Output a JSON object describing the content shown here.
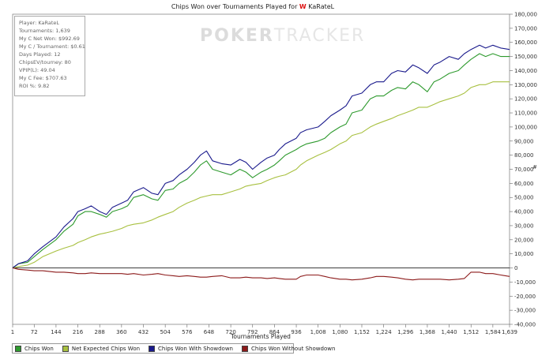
{
  "chart_data": {
    "type": "line",
    "title_prefix": "Chips Won over Tournaments Played for",
    "title_flag": "W",
    "title_player": "KaRateL",
    "xlabel": "Tournaments Played",
    "ylabel": "#",
    "xlim": [
      1,
      1639
    ],
    "ylim": [
      -40000,
      180000
    ],
    "x_ticks": [
      "1",
      "72",
      "144",
      "216",
      "288",
      "360",
      "432",
      "504",
      "576",
      "648",
      "720",
      "792",
      "864",
      "936",
      "1,008",
      "1,080",
      "1,152",
      "1,224",
      "1,296",
      "1,368",
      "1,440",
      "1,512",
      "1,584",
      "1,639"
    ],
    "x_tick_values": [
      1,
      72,
      144,
      216,
      288,
      360,
      432,
      504,
      576,
      648,
      720,
      792,
      864,
      936,
      1008,
      1080,
      1152,
      1224,
      1296,
      1368,
      1440,
      1512,
      1584,
      1639
    ],
    "y_ticks": [
      "180,000",
      "170,000",
      "160,000",
      "150,000",
      "140,000",
      "130,000",
      "120,000",
      "110,000",
      "100,000",
      "90,000",
      "80,000",
      "70,000",
      "60,000",
      "50,000",
      "40,000",
      "30,000",
      "20,000",
      "10,000",
      "0",
      "-10,000",
      "-20,000",
      "-30,000",
      "-40,000"
    ],
    "y_tick_values": [
      180000,
      170000,
      160000,
      150000,
      140000,
      130000,
      120000,
      110000,
      100000,
      90000,
      80000,
      70000,
      60000,
      50000,
      40000,
      30000,
      20000,
      10000,
      0,
      -10000,
      -20000,
      -30000,
      -40000
    ],
    "grid": false,
    "legend_position": "bottom-left",
    "x": [
      1,
      20,
      50,
      72,
      100,
      144,
      170,
      200,
      216,
      240,
      260,
      288,
      310,
      330,
      360,
      380,
      400,
      432,
      460,
      480,
      504,
      530,
      550,
      576,
      600,
      620,
      640,
      660,
      690,
      720,
      750,
      770,
      792,
      820,
      840,
      864,
      880,
      900,
      936,
      950,
      970,
      1008,
      1030,
      1050,
      1080,
      1100,
      1120,
      1152,
      1180,
      1200,
      1224,
      1250,
      1270,
      1296,
      1320,
      1340,
      1368,
      1390,
      1410,
      1440,
      1470,
      1490,
      1512,
      1540,
      1560,
      1584,
      1610,
      1639
    ],
    "series": [
      {
        "name": "Chips Won",
        "color": "#2e9a2e",
        "values": [
          0,
          3000,
          4000,
          8000,
          13000,
          20000,
          26000,
          31000,
          37000,
          40000,
          40000,
          38000,
          36000,
          40000,
          42000,
          44000,
          50000,
          52000,
          49000,
          48000,
          55000,
          56000,
          60000,
          63000,
          68000,
          73000,
          76000,
          70000,
          68000,
          66000,
          70000,
          68000,
          64000,
          68000,
          70000,
          73000,
          76000,
          80000,
          84000,
          86000,
          88000,
          90000,
          92000,
          96000,
          100000,
          102000,
          110000,
          112000,
          120000,
          122000,
          122000,
          126000,
          128000,
          127000,
          132000,
          130000,
          125000,
          132000,
          134000,
          138000,
          140000,
          144000,
          148000,
          152000,
          150000,
          152000,
          150000,
          150000
        ]
      },
      {
        "name": "Net Expected Chips Won",
        "color": "#a8c040",
        "values": [
          0,
          1000,
          2000,
          4000,
          8000,
          12000,
          14000,
          16000,
          18000,
          20000,
          22000,
          24000,
          25000,
          26000,
          28000,
          30000,
          31000,
          32000,
          34000,
          36000,
          38000,
          40000,
          43000,
          46000,
          48000,
          50000,
          51000,
          52000,
          52000,
          54000,
          56000,
          58000,
          59000,
          60000,
          62000,
          64000,
          65000,
          66000,
          70000,
          73000,
          76000,
          80000,
          82000,
          84000,
          88000,
          90000,
          94000,
          96000,
          100000,
          102000,
          104000,
          106000,
          108000,
          110000,
          112000,
          114000,
          114000,
          116000,
          118000,
          120000,
          122000,
          124000,
          128000,
          130000,
          130000,
          132000,
          132000,
          132000
        ]
      },
      {
        "name": "Chips Won With Showdown",
        "color": "#1a1a8c",
        "values": [
          0,
          3000,
          5000,
          10000,
          15000,
          22000,
          29000,
          35000,
          40000,
          42000,
          44000,
          40000,
          38000,
          43000,
          46000,
          48000,
          54000,
          57000,
          53000,
          52000,
          60000,
          62000,
          66000,
          70000,
          75000,
          80000,
          83000,
          76000,
          74000,
          73000,
          77000,
          75000,
          70000,
          75000,
          78000,
          80000,
          84000,
          88000,
          92000,
          96000,
          98000,
          100000,
          104000,
          108000,
          112000,
          115000,
          122000,
          124000,
          130000,
          132000,
          132000,
          138000,
          140000,
          139000,
          144000,
          142000,
          138000,
          144000,
          146000,
          150000,
          148000,
          152000,
          155000,
          158000,
          156000,
          158000,
          156000,
          155000
        ]
      },
      {
        "name": "Chips Won Without Showdown",
        "color": "#8c1a1a",
        "values": [
          0,
          -1000,
          -1500,
          -2000,
          -2000,
          -3000,
          -3000,
          -3500,
          -4000,
          -4000,
          -3500,
          -4000,
          -4000,
          -4000,
          -4000,
          -4500,
          -4000,
          -5000,
          -4500,
          -4000,
          -5000,
          -5500,
          -6000,
          -5500,
          -6000,
          -6500,
          -6500,
          -6000,
          -5500,
          -7000,
          -7000,
          -6500,
          -7000,
          -7000,
          -7500,
          -7000,
          -7500,
          -8000,
          -8000,
          -6000,
          -5000,
          -5000,
          -6000,
          -7000,
          -8000,
          -8000,
          -8500,
          -8000,
          -7000,
          -6000,
          -6000,
          -6500,
          -7000,
          -8000,
          -8500,
          -8000,
          -8000,
          -8000,
          -8000,
          -8500,
          -8000,
          -7500,
          -3000,
          -3000,
          -4000,
          -4000,
          -5000,
          -6000
        ]
      }
    ]
  },
  "info_box": {
    "player": "Player: KaRateL",
    "tournaments": "Tournaments: 1,639",
    "net_won": "My C Net Won: $992.69",
    "per_tournament": "My C / Tournament: $0.61",
    "days_played": "Days Played: 12",
    "chipsev": "ChipsEV/tourney: 80",
    "vpip": "VPIP(L): 49.04",
    "fee": "My C Fee: $707.63",
    "roi": "ROI %: 9.82"
  },
  "watermark": {
    "bold": "POKER",
    "light": "TRACKER"
  }
}
